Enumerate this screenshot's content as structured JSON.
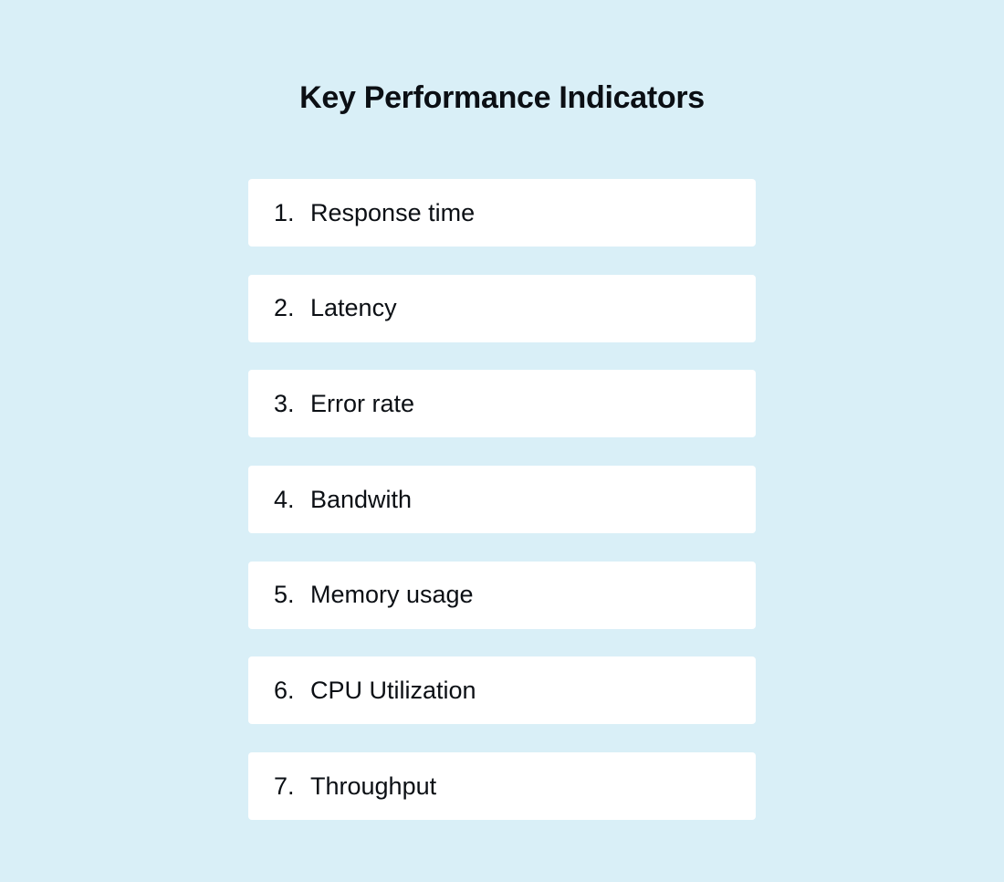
{
  "title": "Key Performance Indicators",
  "items": [
    {
      "number": "1.",
      "label": "Response time"
    },
    {
      "number": "2.",
      "label": "Latency"
    },
    {
      "number": "3.",
      "label": "Error rate"
    },
    {
      "number": "4.",
      "label": "Bandwith"
    },
    {
      "number": "5.",
      "label": "Memory usage"
    },
    {
      "number": "6.",
      "label": "CPU Utilization"
    },
    {
      "number": "7.",
      "label": "Throughput"
    }
  ],
  "colors": {
    "background": "#d9eff7",
    "card": "#ffffff",
    "text": "#0b0f14"
  }
}
